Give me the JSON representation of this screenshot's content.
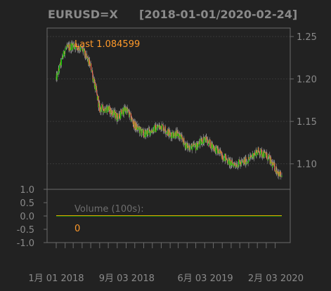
{
  "colors": {
    "background": "#222222",
    "frame": "#6a6a6a",
    "grid": "#3a3a3a",
    "text": "#8a8a8a",
    "up": "#00d000",
    "down": "#ff6a4a",
    "accent": "#ff9a2a",
    "volume_line": "#e0a800",
    "volume_zero": "#00c000"
  },
  "chart_data": [
    {
      "type": "line",
      "title": "EURUSD=X",
      "subtitle": "[2018-01-01/2020-02-24]",
      "ylim": [
        1.07,
        1.26
      ],
      "y_ticks": [
        "1.25",
        "1.20",
        "1.15",
        "1.10"
      ],
      "y_tick_values": [
        1.25,
        1.2,
        1.15,
        1.1
      ],
      "y_axis_position": "right",
      "grid": true,
      "annotation": "Last 1.084599",
      "series": [
        {
          "style": "candlestick",
          "x": [
            "2018-01-01",
            "2018-02-01",
            "2018-03-01",
            "2018-04-01",
            "2018-05-01",
            "2018-06-01",
            "2018-07-01",
            "2018-08-01",
            "2018-09-01",
            "2018-10-01",
            "2018-11-01",
            "2018-12-01",
            "2019-01-01",
            "2019-02-01",
            "2019-03-01",
            "2019-04-01",
            "2019-05-01",
            "2019-06-01",
            "2019-07-01",
            "2019-08-01",
            "2019-09-01",
            "2019-10-01",
            "2019-11-01",
            "2019-12-01",
            "2020-01-01",
            "2020-02-01",
            "2020-02-24"
          ],
          "values": [
            1.2,
            1.235,
            1.24,
            1.235,
            1.215,
            1.165,
            1.165,
            1.155,
            1.165,
            1.145,
            1.135,
            1.14,
            1.145,
            1.135,
            1.135,
            1.12,
            1.12,
            1.13,
            1.12,
            1.11,
            1.1,
            1.1,
            1.105,
            1.115,
            1.11,
            1.095,
            1.084599
          ]
        }
      ]
    },
    {
      "type": "bar",
      "annotation": "Volume (100s):",
      "latest_value": "0",
      "ylim": [
        -1.0,
        1.0
      ],
      "y_ticks": [
        "1.0",
        "0.5",
        "0.0",
        "-0.5",
        "-1.0"
      ],
      "y_tick_values": [
        1.0,
        0.5,
        0.0,
        -0.5,
        -1.0
      ],
      "y_axis_position": "left",
      "values": [
        0
      ]
    }
  ],
  "x_axis": {
    "labels": [
      "1月 01 2018",
      "9月 03 2018",
      "6月 03 2019",
      "2月 03 2020"
    ],
    "label_dates": [
      "2018-01-01",
      "2018-09-03",
      "2019-06-03",
      "2020-02-03"
    ],
    "start": "2018-01-01",
    "end": "2020-02-24"
  }
}
